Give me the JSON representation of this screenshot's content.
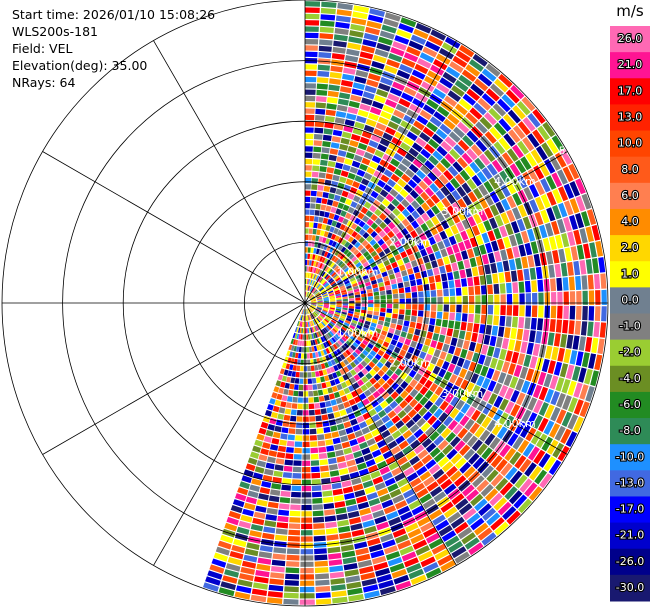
{
  "info": {
    "start_time": "Start time: 2026/01/10 15:08:26",
    "instrument": "WLS200s-181",
    "field": "Field: VEL",
    "elevation": "Elevation(deg): 35.00",
    "nrays": "NRays: 64"
  },
  "chart_data": {
    "type": "heatmap",
    "projection": "polar-ppi",
    "field": "VEL",
    "units": "m/s",
    "ray_count": 64,
    "azimuth_range_deg": [
      0,
      200
    ],
    "range_rings_km": [
      1.0,
      2.0,
      3.0,
      4.0,
      5.0
    ],
    "range_labels": [
      "1.00km",
      "2.00km",
      "3.00km",
      "4.00km",
      "5.0"
    ],
    "max_range_km": 5.0,
    "colorbar": {
      "label": "m/s",
      "ticks": [
        "26.0",
        "21.0",
        "17.0",
        "13.0",
        "10.0",
        "8.0",
        "6.0",
        "4.0",
        "2.0",
        "1.0",
        "0.0",
        "-1.0",
        "-2.0",
        "-4.0",
        "-6.0",
        "-8.0",
        "-10.0",
        "-13.0",
        "-17.0",
        "-21.0",
        "-26.0",
        "-30.0"
      ],
      "colors": [
        "#ff69b4",
        "#ff1493",
        "#ff0000",
        "#ff2200",
        "#ff4500",
        "#ff5a1a",
        "#ff7f50",
        "#ff8c00",
        "#ffd700",
        "#ffff00",
        "#708090",
        "#808080",
        "#9acd32",
        "#6b8e23",
        "#228b22",
        "#2e8b57",
        "#1e90ff",
        "#4169e1",
        "#0000ff",
        "#0000cd",
        "#00008b",
        "#191970"
      ]
    }
  }
}
